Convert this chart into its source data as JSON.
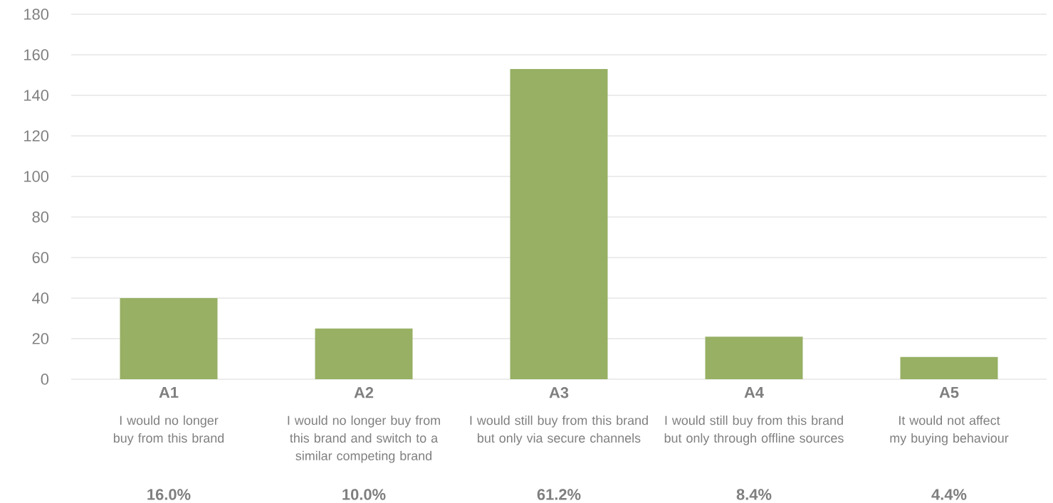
{
  "chart_data": {
    "type": "bar",
    "categories": [
      "A1",
      "A2",
      "A3",
      "A4",
      "A5"
    ],
    "values": [
      40,
      25,
      153,
      21,
      11
    ],
    "color": "#97b064",
    "ylim": [
      0,
      180
    ],
    "yticks": [
      0,
      20,
      40,
      60,
      80,
      100,
      120,
      140,
      160,
      180
    ],
    "grid": "y",
    "annotations": [
      "I would no longer buy from this brand",
      "I would no longer buy from this brand and switch to a similar competing brand",
      "I would still buy from this brand but only via secure channels",
      "I would still buy from this brand but only through offline sources",
      "It would not affect my buying behaviour",
      "16.0%",
      "10.0%",
      "61.2%",
      "8.4%",
      "4.4%"
    ]
  }
}
